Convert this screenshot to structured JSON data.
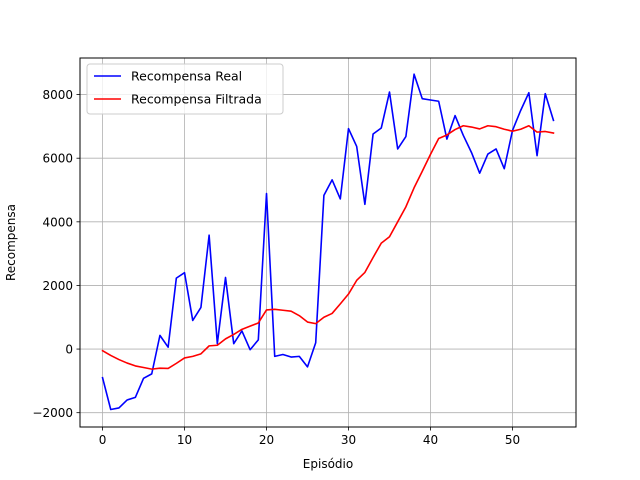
{
  "chart_data": {
    "type": "line",
    "xlabel": "Episódio",
    "ylabel": "Recompensa",
    "xlim": [
      -2.75,
      57.75
    ],
    "ylim": [
      -2450,
      9150
    ],
    "xticks": [
      0,
      10,
      20,
      30,
      40,
      50
    ],
    "yticks": [
      -2000,
      0,
      2000,
      4000,
      6000,
      8000
    ],
    "xtick_labels": [
      "0",
      "10",
      "20",
      "30",
      "40",
      "50"
    ],
    "ytick_labels": [
      "−2000",
      "0",
      "2000",
      "4000",
      "6000",
      "8000"
    ],
    "grid": true,
    "legend_position": "upper-left",
    "x": [
      0,
      1,
      2,
      3,
      4,
      5,
      6,
      7,
      8,
      9,
      10,
      11,
      12,
      13,
      14,
      15,
      16,
      17,
      18,
      19,
      20,
      21,
      22,
      23,
      24,
      25,
      26,
      27,
      28,
      29,
      30,
      31,
      32,
      33,
      34,
      35,
      36,
      37,
      38,
      39,
      40,
      41,
      42,
      43,
      44,
      45,
      46,
      47,
      48,
      49,
      50,
      51,
      52,
      53,
      54,
      55
    ],
    "series": [
      {
        "name": "Recompensa Real",
        "color": "#0000ff",
        "values": [
          -900,
          -1900,
          -1850,
          -1600,
          -1520,
          -920,
          -780,
          430,
          60,
          2230,
          2400,
          900,
          1310,
          3580,
          170,
          2250,
          170,
          570,
          -20,
          290,
          4890,
          -230,
          -170,
          -250,
          -230,
          -560,
          200,
          4830,
          5320,
          4720,
          6930,
          6370,
          4550,
          6760,
          6950,
          8080,
          6290,
          6680,
          8640,
          7870,
          7830,
          7790,
          6600,
          7340,
          6720,
          6180,
          5530,
          6130,
          6290,
          5670,
          6870,
          7500,
          8060,
          6080,
          8030,
          7190
        ]
      },
      {
        "name": "Recompensa Filtrada",
        "color": "#ff0000",
        "values": [
          -50,
          -200,
          -330,
          -440,
          -530,
          -580,
          -630,
          -600,
          -610,
          -450,
          -280,
          -230,
          -150,
          100,
          120,
          320,
          460,
          620,
          720,
          820,
          1230,
          1250,
          1220,
          1190,
          1050,
          850,
          800,
          1000,
          1120,
          1420,
          1730,
          2160,
          2410,
          2880,
          3330,
          3530,
          4000,
          4470,
          5070,
          5590,
          6120,
          6620,
          6730,
          6900,
          7020,
          6980,
          6920,
          7020,
          6990,
          6910,
          6850,
          6910,
          7020,
          6820,
          6840,
          6790
        ]
      }
    ]
  }
}
